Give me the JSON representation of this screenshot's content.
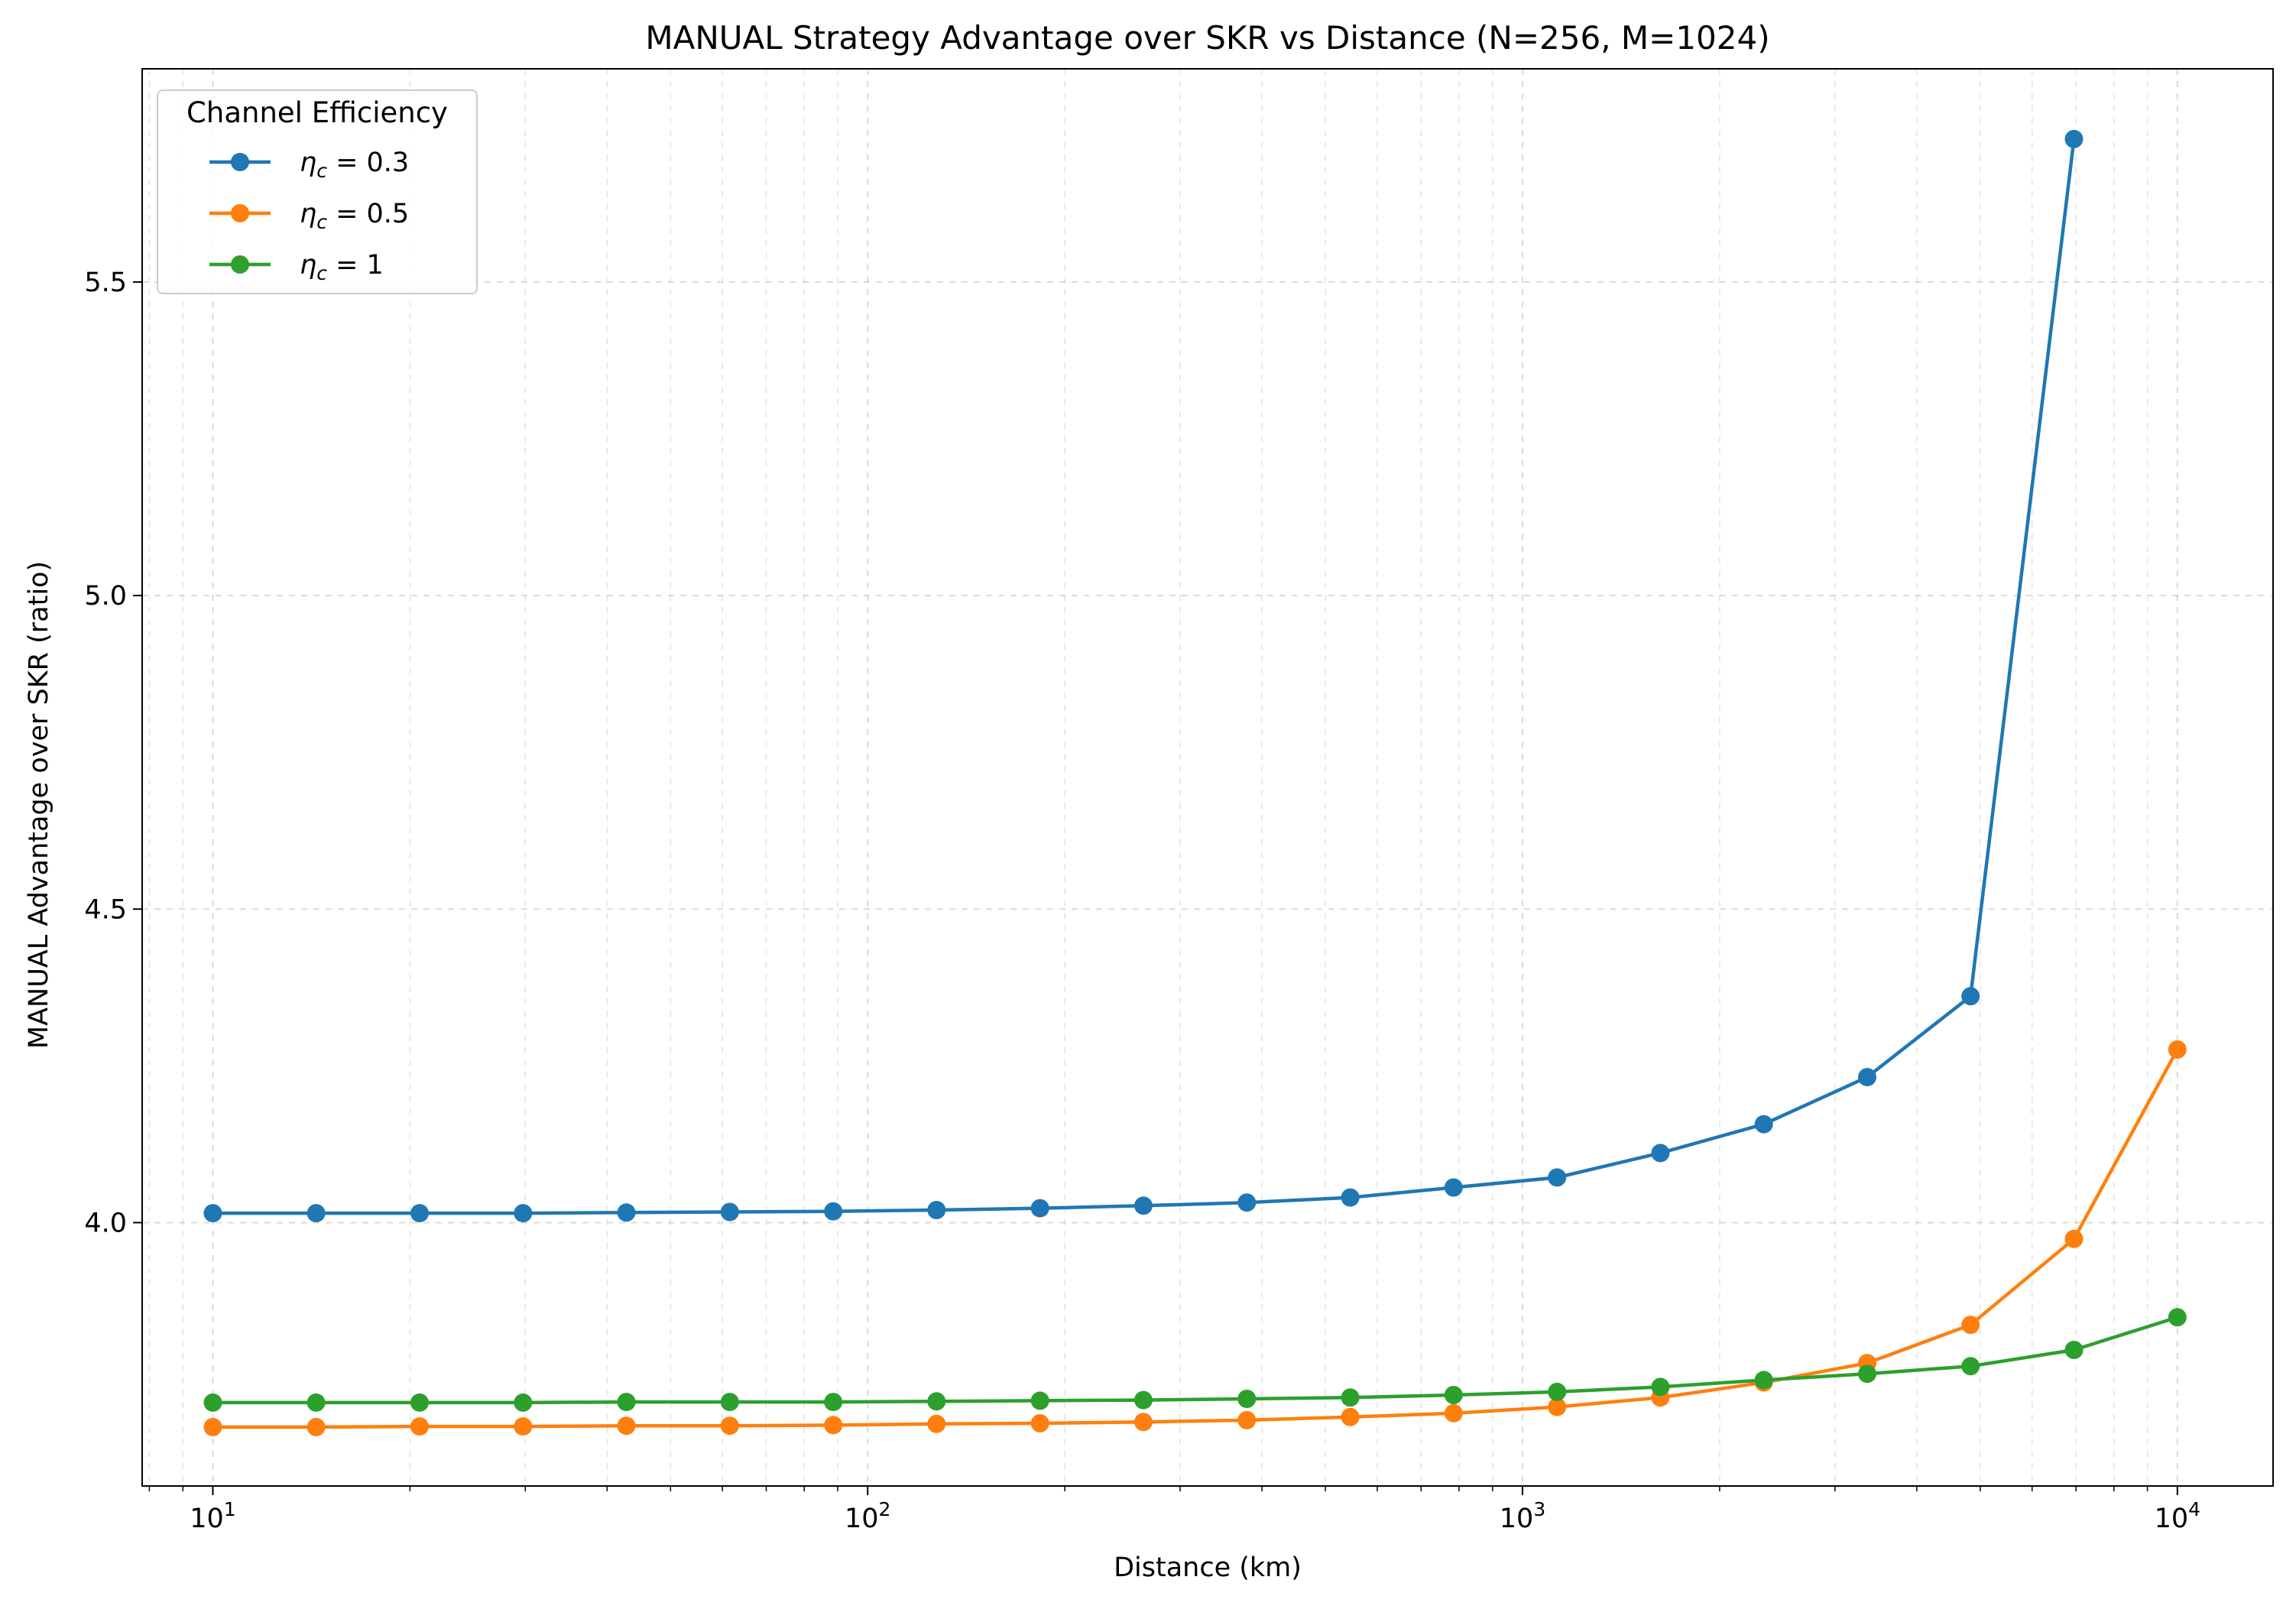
{
  "chart_data": {
    "type": "line",
    "title": "MANUAL Strategy Advantage over SKR vs Distance (N=256, M=1024)",
    "xlabel": "Distance (km)",
    "ylabel": "MANUAL Advantage over SKR (ratio)",
    "xscale": "log",
    "xlim": [
      7.8,
      14000
    ],
    "ylim": [
      3.58,
      5.84
    ],
    "xticks": [
      {
        "value": 10,
        "base": "10",
        "exp": "1"
      },
      {
        "value": 100,
        "base": "10",
        "exp": "2"
      },
      {
        "value": 1000,
        "base": "10",
        "exp": "3"
      },
      {
        "value": 10000,
        "base": "10",
        "exp": "4"
      }
    ],
    "yticks": [
      {
        "value": 4.0,
        "label": "4.0"
      },
      {
        "value": 4.5,
        "label": "4.5"
      },
      {
        "value": 5.0,
        "label": "5.0"
      },
      {
        "value": 5.5,
        "label": "5.5"
      }
    ],
    "grid": true,
    "legend": {
      "title": "Channel Efficiency",
      "position": "top-left"
    },
    "x": [
      10,
      14.38,
      20.69,
      29.76,
      42.81,
      61.58,
      88.59,
      127.4,
      183.3,
      263.7,
      379.3,
      545.6,
      784.8,
      1129,
      1624,
      2336,
      3360,
      4833,
      6952,
      10000
    ],
    "series": [
      {
        "name": "η_c = 0.3",
        "label_prefix": "η",
        "label_sub": "c",
        "label_suffix": " = 0.3",
        "color": "#1f77b4",
        "values": [
          4.015,
          4.015,
          4.015,
          4.015,
          4.016,
          4.017,
          4.018,
          4.02,
          4.023,
          4.027,
          4.032,
          4.04,
          4.056,
          4.072,
          4.111,
          4.157,
          4.232,
          4.361,
          5.728,
          null
        ]
      },
      {
        "name": "η_c = 0.5",
        "label_prefix": "η",
        "label_sub": "c",
        "label_suffix": " = 0.5",
        "color": "#ff7f0e",
        "values": [
          3.674,
          3.674,
          3.675,
          3.675,
          3.676,
          3.676,
          3.677,
          3.679,
          3.68,
          3.682,
          3.685,
          3.69,
          3.696,
          3.706,
          3.721,
          3.745,
          3.776,
          3.837,
          3.974,
          4.276
        ]
      },
      {
        "name": "η_c = 1",
        "label_prefix": "η",
        "label_sub": "c",
        "label_suffix": " = 1",
        "color": "#2ca02c",
        "values": [
          3.713,
          3.713,
          3.713,
          3.713,
          3.714,
          3.714,
          3.714,
          3.715,
          3.716,
          3.717,
          3.719,
          3.721,
          3.725,
          3.73,
          3.738,
          3.749,
          3.759,
          3.771,
          3.797,
          3.849
        ]
      }
    ]
  }
}
